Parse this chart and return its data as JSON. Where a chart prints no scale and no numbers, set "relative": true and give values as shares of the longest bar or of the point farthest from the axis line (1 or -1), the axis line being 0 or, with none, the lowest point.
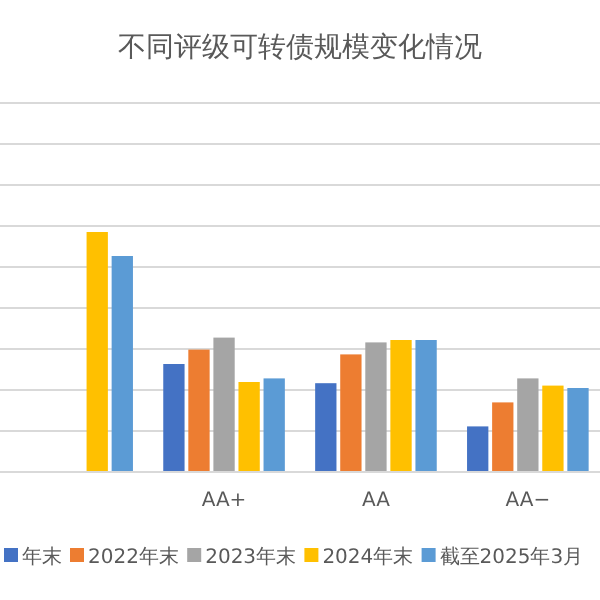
{
  "chart_data": {
    "type": "bar",
    "title": "不同评级可转债规模变化情况",
    "relative": true,
    "grid": "y",
    "legend": "bottom",
    "categories": [
      null,
      "AA+",
      "AA",
      "AA−"
    ],
    "series": [
      {
        "name": "年末",
        "color": "#4472c4",
        "values": [
          null,
          0.45,
          0.37,
          0.19
        ]
      },
      {
        "name": "2022年末",
        "color": "#ed7d31",
        "values": [
          null,
          0.51,
          0.49,
          0.29
        ]
      },
      {
        "name": "2023年末",
        "color": "#a5a5a5",
        "values": [
          null,
          0.56,
          0.54,
          0.39
        ]
      },
      {
        "name": "2024年末",
        "color": "#ffc000",
        "values": [
          1,
          0.375,
          0.55,
          0.36
        ]
      },
      {
        "name": "截至2025年3月",
        "color": "#5b9bd5",
        "values": [
          0.9,
          0.39,
          0.55,
          0.35
        ]
      }
    ]
  }
}
